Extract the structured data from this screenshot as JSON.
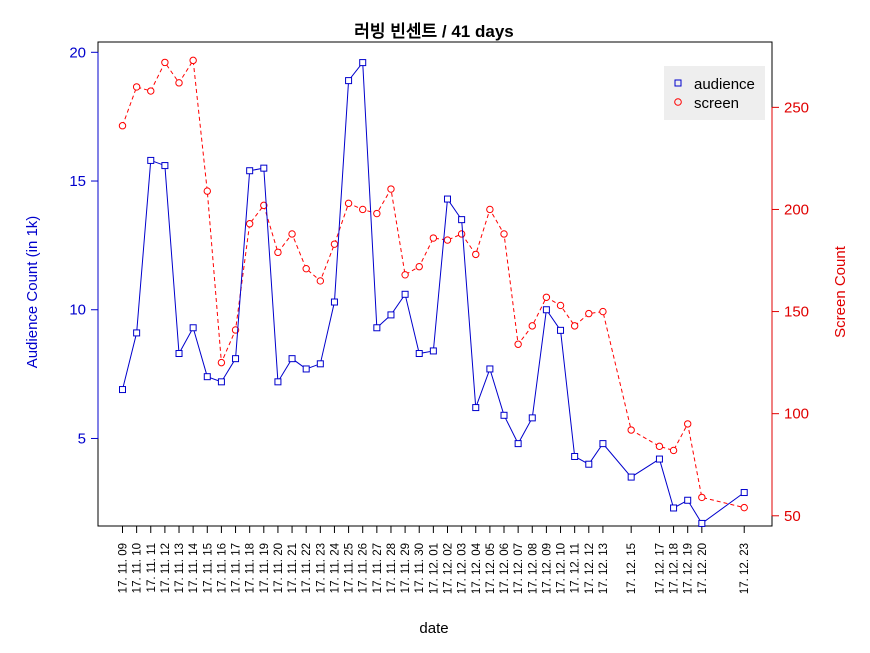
{
  "chart_data": {
    "type": "line",
    "title": "러빙 빈센트 / 41 days",
    "xlabel": "date",
    "ylabel_left": "Audience Count (in 1k)",
    "ylabel_right": "Screen Count",
    "ylim_left": [
      1.6,
      20.4
    ],
    "ylim_right": [
      45,
      282
    ],
    "yticks_left": [
      5,
      10,
      15,
      20
    ],
    "yticks_right": [
      50,
      100,
      150,
      200,
      250
    ],
    "legend_position": "top-right",
    "colors": {
      "audience": "#0000cc",
      "screen": "#ff0000"
    },
    "x": [
      "17. 11. 09",
      "17. 11. 10",
      "17. 11. 11",
      "17. 11. 12",
      "17. 11. 13",
      "17. 11. 14",
      "17. 11. 15",
      "17. 11. 16",
      "17. 11. 17",
      "17. 11. 18",
      "17. 11. 19",
      "17. 11. 20",
      "17. 11. 21",
      "17. 11. 22",
      "17. 11. 23",
      "17. 11. 24",
      "17. 11. 25",
      "17. 11. 26",
      "17. 11. 27",
      "17. 11. 28",
      "17. 11. 29",
      "17. 11. 30",
      "17. 12. 01",
      "17. 12. 02",
      "17. 12. 03",
      "17. 12. 04",
      "17. 12. 05",
      "17. 12. 06",
      "17. 12. 07",
      "17. 12. 08",
      "17. 12. 09",
      "17. 12. 10",
      "17. 12. 11",
      "17. 12. 12",
      "17. 12. 13",
      "17. 12. 15",
      "17. 12. 17",
      "17. 12. 18",
      "17. 12. 19",
      "17. 12. 20",
      "17. 12. 23"
    ],
    "series": [
      {
        "name": "audience",
        "axis": "left",
        "values": [
          6.9,
          9.1,
          15.8,
          15.6,
          8.3,
          9.3,
          7.4,
          7.2,
          8.1,
          15.4,
          15.5,
          7.2,
          8.1,
          7.7,
          7.9,
          10.3,
          18.9,
          19.6,
          9.3,
          9.8,
          10.6,
          8.3,
          8.4,
          14.3,
          13.5,
          6.2,
          7.7,
          5.9,
          4.8,
          5.8,
          10.0,
          9.2,
          4.3,
          4.0,
          4.8,
          3.5,
          4.2,
          2.3,
          2.6,
          1.7,
          2.9
        ]
      },
      {
        "name": "screen",
        "axis": "right",
        "values": [
          241,
          260,
          258,
          272,
          262,
          273,
          209,
          125,
          141,
          193,
          202,
          179,
          188,
          171,
          165,
          183,
          203,
          200,
          198,
          210,
          168,
          172,
          186,
          185,
          188,
          178,
          200,
          188,
          134,
          143,
          157,
          153,
          143,
          149,
          150,
          92,
          84,
          82,
          95,
          59,
          54
        ]
      }
    ],
    "x_label_gaps_after": [
      "17. 12. 13",
      "17. 12. 15",
      "17. 12. 20"
    ]
  }
}
